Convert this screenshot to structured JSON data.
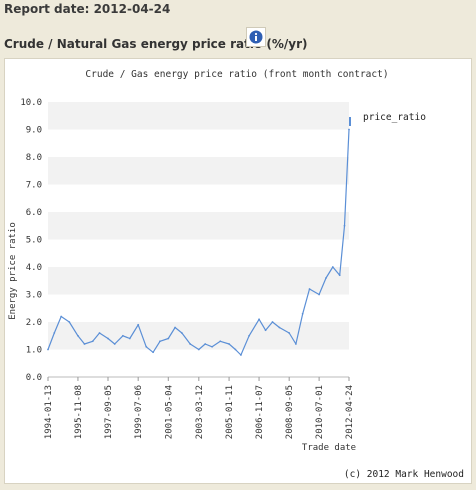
{
  "report_date": "Report date: 2012-04-24",
  "section_title": "Crude / Natural Gas energy price ratio (%/yr)",
  "info_icon": "info-icon",
  "accent_color": "#5b8fd6",
  "footer_credit": "(c) 2012 Mark Henwood",
  "chart_data": {
    "type": "line",
    "title": "Crude / Gas energy price ratio (front month contract)",
    "xlabel": "Trade date",
    "ylabel": "Energy price ratio",
    "ylim": [
      0,
      10
    ],
    "yticks": [
      "0.0",
      "1.0",
      "2.0",
      "3.0",
      "4.0",
      "5.0",
      "6.0",
      "7.0",
      "8.0",
      "9.0",
      "10.0"
    ],
    "xticks": [
      "1994-01-13",
      "1995-11-08",
      "1997-09-05",
      "1999-07-06",
      "2001-05-04",
      "2003-03-12",
      "2005-01-11",
      "2006-11-07",
      "2008-09-05",
      "2010-07-01",
      "2012-04-24"
    ],
    "grid": "alternating horizontal bands",
    "legend_position": "top-right",
    "series": [
      {
        "name": "price_ratio",
        "color": "#5b8fd6",
        "x": [
          "1994-01-13",
          "1994-06-01",
          "1994-11-01",
          "1995-05-01",
          "1995-11-08",
          "1996-04-01",
          "1996-10-01",
          "1997-03-01",
          "1997-09-05",
          "1998-02-01",
          "1998-08-01",
          "1999-01-01",
          "1999-07-06",
          "2000-01-01",
          "2000-06-01",
          "2000-11-01",
          "2001-05-04",
          "2001-10-01",
          "2002-03-01",
          "2002-09-01",
          "2003-03-12",
          "2003-08-01",
          "2004-01-01",
          "2004-07-01",
          "2005-01-11",
          "2005-06-01",
          "2005-10-01",
          "2006-04-01",
          "2006-11-07",
          "2007-04-01",
          "2007-09-01",
          "2008-02-01",
          "2008-09-05",
          "2009-02-01",
          "2009-07-01",
          "2009-12-01",
          "2010-07-01",
          "2010-12-01",
          "2011-05-01",
          "2011-10-01",
          "2012-01-15",
          "2012-04-24"
        ],
        "values": [
          1.0,
          1.6,
          2.2,
          2.0,
          1.5,
          1.2,
          1.3,
          1.6,
          1.4,
          1.2,
          1.5,
          1.4,
          1.9,
          1.1,
          0.9,
          1.3,
          1.4,
          1.8,
          1.6,
          1.2,
          1.0,
          1.2,
          1.1,
          1.3,
          1.2,
          1.0,
          0.8,
          1.5,
          2.1,
          1.7,
          2.0,
          1.8,
          1.6,
          1.2,
          2.3,
          3.2,
          3.0,
          3.6,
          4.0,
          3.7,
          5.5,
          9.0
        ]
      }
    ]
  }
}
